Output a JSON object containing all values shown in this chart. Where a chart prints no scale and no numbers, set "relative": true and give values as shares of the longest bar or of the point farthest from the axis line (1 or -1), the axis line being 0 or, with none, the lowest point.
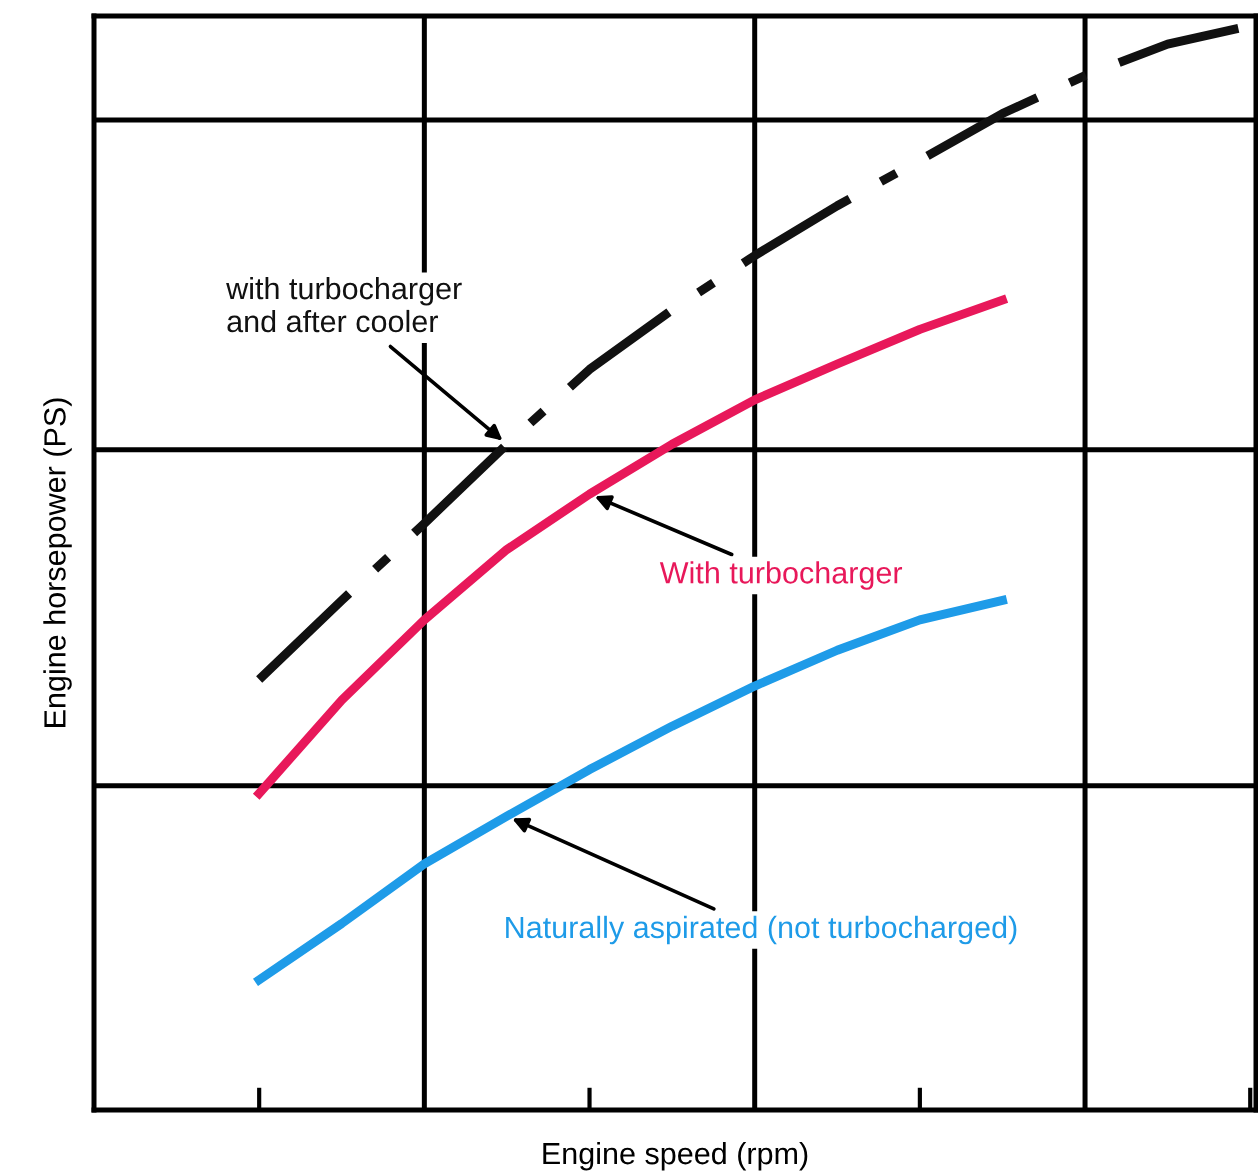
{
  "chart_data": {
    "type": "line",
    "relative": true,
    "xlabel": "Engine speed (rpm)",
    "ylabel": "Engine horsepower (PS)",
    "grid": true,
    "legend": false,
    "marker": "none",
    "categories": [
      null,
      null,
      null,
      null,
      null,
      null,
      null,
      null,
      null,
      null,
      null,
      null,
      null
    ],
    "series": [
      {
        "name": "with turbocharger\nand after cooler",
        "color": "#111111",
        "line_style": "dashed",
        "values": [
          0.397,
          0.47,
          0.541,
          0.614,
          0.683,
          0.738,
          0.788,
          0.834,
          0.876,
          0.919,
          0.954,
          0.983,
          1.0
        ]
      },
      {
        "name": "With turbocharger",
        "color": "#e8185a",
        "line_style": "solid",
        "values": [
          0.292,
          0.378,
          0.452,
          0.517,
          0.568,
          0.614,
          0.655,
          0.688,
          0.72,
          0.747,
          null,
          null,
          null
        ]
      },
      {
        "name": "Naturally aspirated (not turbocharged)",
        "color": "#1e9be8",
        "line_style": "solid",
        "values": [
          0.12,
          0.172,
          0.227,
          0.271,
          0.314,
          0.354,
          0.391,
          0.424,
          0.452,
          0.47,
          null,
          null,
          null
        ]
      }
    ]
  }
}
